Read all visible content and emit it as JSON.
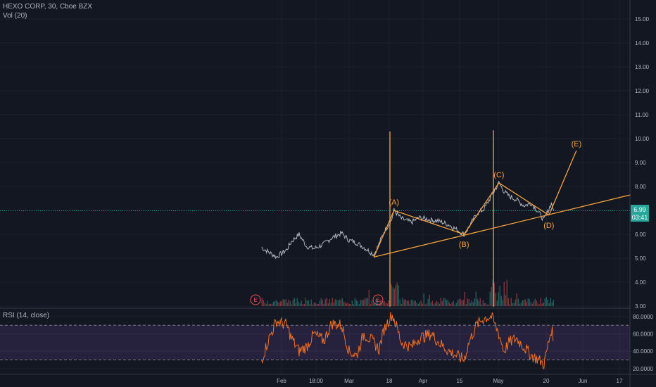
{
  "header": {
    "symbol_line": "HEXO CORP, 30, Cboe BZX",
    "volume_indicator": "Vol (20)"
  },
  "rsi_pane": {
    "label": "RSI (14, close)"
  },
  "price_axis": {
    "ticks": [
      "15.00",
      "14.00",
      "13.00",
      "12.00",
      "11.00",
      "10.00",
      "9.00",
      "8.00",
      "7.00",
      "6.00",
      "5.00",
      "4.00",
      "3.00"
    ],
    "min": 3.0,
    "max": 15.0
  },
  "rsi_axis": {
    "ticks": [
      "80.0000",
      "60.0000",
      "40.0000",
      "20.0000"
    ],
    "min": 15,
    "max": 88,
    "upper_band": 70,
    "lower_band": 30
  },
  "time_axis": {
    "ticks": [
      "Feb",
      "18:00",
      "Mar",
      "18",
      "Apr",
      "15",
      "May",
      "20",
      "Jun",
      "17"
    ]
  },
  "last_price": {
    "value": 6.99,
    "label": "6.99",
    "countdown": "03:41"
  },
  "colors": {
    "background": "#131722",
    "grid": "#1e222d",
    "price_line": "#b2b5be",
    "annotation": "#f7a13b",
    "rsi_line": "#f37021",
    "rsi_band": "#7e57c2",
    "last_price": "#26a69a",
    "volume_up": "#26a69a",
    "volume_down": "#ef5350"
  },
  "chart_data": {
    "type": "line",
    "price_series": {
      "name": "HEXO CORP",
      "x": [
        "Jan 24",
        "Jan 27",
        "Jan 30",
        "Feb 3",
        "Feb 5",
        "Feb 8",
        "Feb 11",
        "Feb 14",
        "Feb 18",
        "Feb 21",
        "Feb 25",
        "Feb 28",
        "Mar 3",
        "Mar 6",
        "Mar 10",
        "Mar 12",
        "Mar 14",
        "Mar 17",
        "Mar 18",
        "Mar 21",
        "Mar 25",
        "Mar 28",
        "Apr 2",
        "Apr 5",
        "Apr 9",
        "Apr 12",
        "Apr 15",
        "Apr 17",
        "Apr 20",
        "Apr 23",
        "Apr 26",
        "Apr 29",
        "May 1",
        "May 3",
        "May 6",
        "May 9",
        "May 12",
        "May 15",
        "May 17",
        "May 20",
        "May 21"
      ],
      "y": [
        5.45,
        5.25,
        5.05,
        5.35,
        5.7,
        6.0,
        5.5,
        5.4,
        5.6,
        5.85,
        6.05,
        5.75,
        5.65,
        5.45,
        5.15,
        5.6,
        6.1,
        6.6,
        7.0,
        6.65,
        6.5,
        6.7,
        6.6,
        6.55,
        6.4,
        6.2,
        6.0,
        6.3,
        6.85,
        7.05,
        7.6,
        8.15,
        7.8,
        7.6,
        7.45,
        7.2,
        7.3,
        6.9,
        6.6,
        7.3,
        6.99
      ]
    },
    "wave_labels": [
      "(A)",
      "(B)",
      "(C)",
      "(D)",
      "(E)"
    ],
    "wave_points": [
      {
        "label": "(A)",
        "x": "Mar 18",
        "y": 7.0
      },
      {
        "label": "(B)",
        "x": "Apr 15",
        "y": 6.0
      },
      {
        "label": "(C)",
        "x": "Apr 29",
        "y": 8.15
      },
      {
        "label": "(D)",
        "x": "May 19",
        "y": 6.8
      },
      {
        "label": "(E)",
        "x": "May 30",
        "y": 9.5
      }
    ],
    "earnings_markers": [
      {
        "label": "E",
        "x": "Jan 24"
      },
      {
        "label": "E",
        "x": "Mar 14"
      }
    ],
    "rsi_series": {
      "name": "RSI (14, close)",
      "y": [
        30,
        55,
        75,
        70,
        55,
        40,
        45,
        60,
        52,
        72,
        70,
        40,
        35,
        60,
        50,
        42,
        65,
        82,
        78,
        50,
        45,
        55,
        60,
        50,
        40,
        35,
        30,
        50,
        70,
        78,
        80,
        60,
        40,
        50,
        55,
        45,
        35,
        30,
        25,
        65,
        55
      ]
    }
  }
}
